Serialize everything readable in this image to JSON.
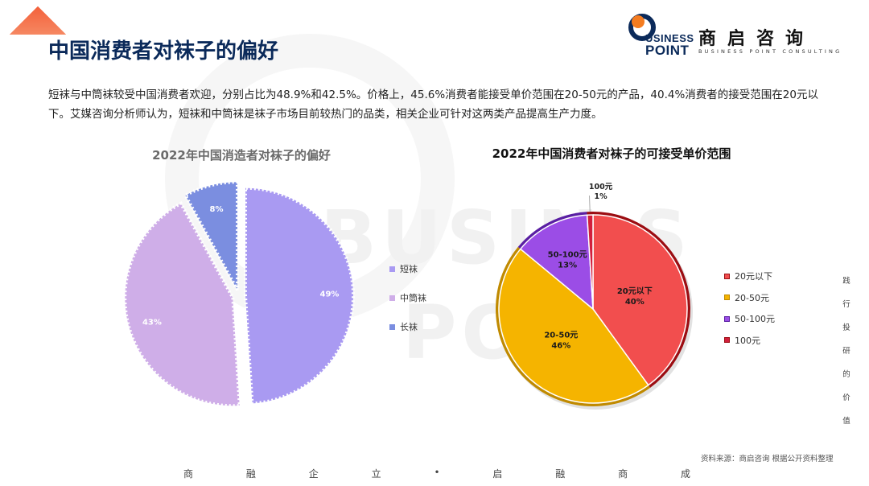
{
  "page": {
    "title": "中国消费者对袜子的偏好",
    "description": "短袜与中筒袜较受中国消费者欢迎，分别占比为48.9%和42.5%。价格上，45.6%消费者能接受单价范围在20-50元的产品，40.4%消费者的接受范围在20元以下。艾媒咨询分析师认为，短袜和中筒袜是袜子市场目前较热门的品类，相关企业可针对这两类产品提高生产力度。",
    "source": "资料来源：商启咨询 根据公开资料整理",
    "footer_chars": [
      "商",
      "融",
      "企",
      "立",
      "•",
      "启",
      "融",
      "商",
      "成"
    ],
    "side_text": "践行投研的价值"
  },
  "logo": {
    "en_line1": "USINESS",
    "en_line2": "POINT",
    "cn": "商启咨询",
    "tagline": "BUSINESS POINT CONSULTING"
  },
  "watermark": {
    "line1": "BUSIN S",
    "line2": "PO"
  },
  "chart_data": [
    {
      "type": "pie",
      "title": "2022年中国消造者对袜子的偏好",
      "categories": [
        "短袜",
        "中筒袜",
        "长袜"
      ],
      "values": [
        49,
        43,
        8
      ],
      "labels": [
        "49%",
        "43%",
        "8%"
      ],
      "colors": [
        "#a99af2",
        "#cfaee8",
        "#7b8ee0"
      ],
      "legend_position": "right"
    },
    {
      "type": "pie",
      "title": "2022年中国消费者对袜子的可接受单价范围",
      "categories": [
        "20元以下",
        "20-50元",
        "50-100元",
        "100元"
      ],
      "values": [
        40,
        46,
        13,
        1
      ],
      "labels": [
        "40%",
        "46%",
        "13%",
        "1%"
      ],
      "colors": [
        "#f24e4e",
        "#f5b400",
        "#9b4de6",
        "#d21f3c"
      ],
      "edge_colors": [
        "#9c0d12",
        "#c08a00",
        "#5a1fa3",
        "#9c0d12"
      ],
      "legend_position": "right"
    }
  ]
}
